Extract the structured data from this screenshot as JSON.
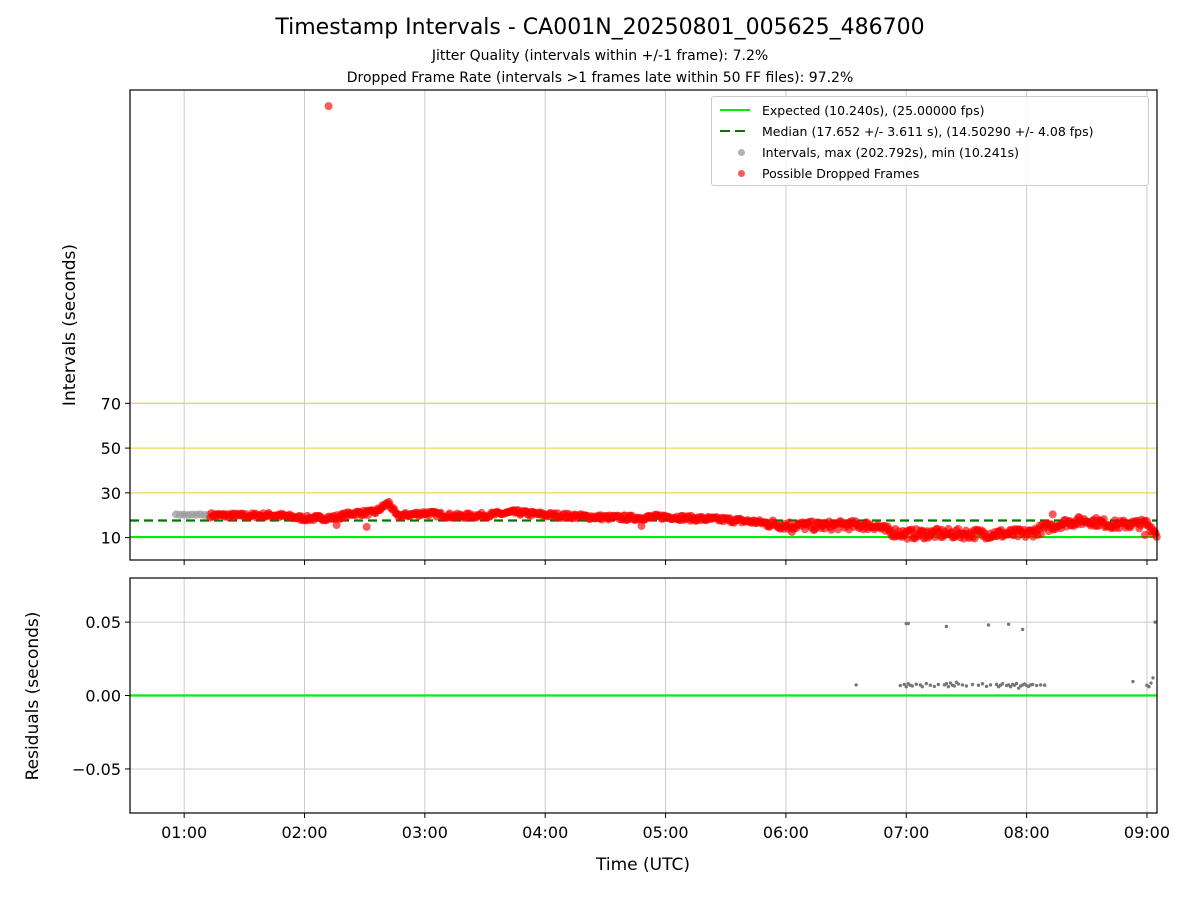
{
  "title": "Timestamp Intervals - CA001N_20250801_005625_486700",
  "subtitles": [
    "Jitter Quality (intervals within +/-1 frame): 7.2%",
    "Dropped Frame Rate (intervals >1 frames late within 50 FF files): 97.2%"
  ],
  "colors": {
    "expected": "#00ee00",
    "median": "#007700",
    "intervals": "#999999",
    "dropped": "#ff0000",
    "threshold": "#f5d060",
    "residual": "#777777",
    "grid": "#cccccc"
  },
  "chart_data": [
    {
      "type": "scatter",
      "xlabel": "Time (UTC)",
      "ylabel": "Intervals (seconds)",
      "x_ticks": [
        "01:00",
        "02:00",
        "03:00",
        "04:00",
        "05:00",
        "06:00",
        "07:00",
        "08:00",
        "09:00"
      ],
      "y_ticks": [
        10,
        30,
        50,
        70
      ],
      "xlim": [
        "00:33",
        "09:05"
      ],
      "ylim": [
        0,
        210
      ],
      "grid": "vertical",
      "legend_position": "top-right",
      "horizontal_lines": [
        {
          "name": "Expected (10.240s), (25.00000 fps)",
          "y": 10.24,
          "style": "solid"
        },
        {
          "name": "Median (17.652 +/- 3.611 s), (14.50290 +/- 4.08 fps)",
          "y": 17.652,
          "style": "dashed"
        },
        {
          "name": "",
          "y": 30,
          "style": "threshold"
        },
        {
          "name": "",
          "y": 50,
          "style": "threshold"
        },
        {
          "name": "",
          "y": 70,
          "style": "threshold"
        }
      ],
      "series": [
        {
          "name": "Intervals, max (202.792s), min (10.241s)",
          "points": [
            [
              "00:56",
              20.4
            ],
            [
              "00:58",
              20.2
            ],
            [
              "01:00",
              20.3
            ],
            [
              "01:02",
              20.1
            ],
            [
              "01:04",
              20.3
            ],
            [
              "01:06",
              20.2
            ],
            [
              "01:08",
              20.4
            ],
            [
              "01:10",
              20.1
            ],
            [
              "01:12",
              20.2
            ]
          ]
        },
        {
          "name": "Possible Dropped Frames",
          "outlier": [
            "02:12",
            202.8
          ],
          "trend": [
            [
              "01:13",
              20.0
            ],
            [
              "01:30",
              19.8
            ],
            [
              "01:45",
              20.1
            ],
            [
              "02:00",
              18.6
            ],
            [
              "02:15",
              18.9
            ],
            [
              "02:25",
              21.0
            ],
            [
              "02:35",
              21.2
            ],
            [
              "02:42",
              25.6
            ],
            [
              "02:46",
              19.6
            ],
            [
              "03:00",
              21.0
            ],
            [
              "03:15",
              19.6
            ],
            [
              "03:30",
              20.0
            ],
            [
              "03:45",
              21.3
            ],
            [
              "04:00",
              20.2
            ],
            [
              "04:15",
              19.6
            ],
            [
              "04:30",
              19.0
            ],
            [
              "04:45",
              18.8
            ],
            [
              "05:00",
              19.4
            ],
            [
              "05:15",
              18.5
            ],
            [
              "05:30",
              18.0
            ],
            [
              "05:45",
              17.0
            ],
            [
              "06:00",
              15.5
            ],
            [
              "06:15",
              15.2
            ],
            [
              "06:30",
              15.6
            ],
            [
              "06:45",
              15.4
            ],
            [
              "06:50",
              13.0
            ],
            [
              "07:00",
              11.6
            ],
            [
              "07:15",
              11.8
            ],
            [
              "07:30",
              11.7
            ],
            [
              "07:45",
              11.8
            ],
            [
              "08:00",
              11.7
            ],
            [
              "08:10",
              14.5
            ],
            [
              "08:20",
              16.8
            ],
            [
              "08:30",
              17.6
            ],
            [
              "08:45",
              15.7
            ],
            [
              "09:00",
              16.3
            ],
            [
              "09:05",
              11.6
            ]
          ]
        }
      ]
    },
    {
      "type": "scatter",
      "xlabel": "Time (UTC)",
      "ylabel": "Residuals (seconds)",
      "y_ticks": [
        "0.05",
        "0.00",
        "−0.05"
      ],
      "y_tick_values": [
        0.05,
        0.0,
        -0.05
      ],
      "ylim": [
        -0.08,
        0.08
      ],
      "grid": "both",
      "zero_line": 0.0,
      "series": [
        {
          "name": "",
          "points": [
            [
              "06:57",
              0.0068
            ],
            [
              "06:59",
              0.0075
            ],
            [
              "07:00",
              0.006
            ],
            [
              "07:01",
              0.008
            ],
            [
              "07:02",
              0.007
            ],
            [
              "07:03",
              0.0065
            ],
            [
              "07:05",
              0.0077
            ],
            [
              "07:07",
              0.0072
            ],
            [
              "07:08",
              0.006
            ],
            [
              "07:10",
              0.0081
            ],
            [
              "07:12",
              0.007
            ],
            [
              "07:14",
              0.0062
            ],
            [
              "07:16",
              0.0075
            ],
            [
              "07:19",
              0.0072
            ],
            [
              "07:20",
              0.008
            ],
            [
              "07:21",
              0.006
            ],
            [
              "07:22",
              0.0085
            ],
            [
              "07:23",
              0.007
            ],
            [
              "07:24",
              0.0065
            ],
            [
              "07:25",
              0.009
            ],
            [
              "07:26",
              0.0078
            ],
            [
              "07:28",
              0.0072
            ],
            [
              "07:30",
              0.0065
            ],
            [
              "07:33",
              0.0075
            ],
            [
              "07:36",
              0.007
            ],
            [
              "07:38",
              0.008
            ],
            [
              "07:40",
              0.0062
            ],
            [
              "07:42",
              0.0072
            ],
            [
              "07:45",
              0.0076
            ],
            [
              "07:46",
              0.006
            ],
            [
              "07:47",
              0.007
            ],
            [
              "07:48",
              0.008
            ],
            [
              "07:50",
              0.0068
            ],
            [
              "07:51",
              0.0072
            ],
            [
              "07:52",
              0.006
            ],
            [
              "07:53",
              0.0075
            ],
            [
              "07:54",
              0.007
            ],
            [
              "07:55",
              0.0082
            ],
            [
              "07:56",
              0.005
            ],
            [
              "07:57",
              0.0065
            ],
            [
              "07:58",
              0.0072
            ],
            [
              "07:59",
              0.0078
            ],
            [
              "08:00",
              0.0068
            ],
            [
              "08:01",
              0.0062
            ],
            [
              "08:02",
              0.0072
            ],
            [
              "08:03",
              0.0075
            ],
            [
              "08:05",
              0.0068
            ],
            [
              "08:07",
              0.0072
            ],
            [
              "08:09",
              0.007
            ],
            [
              "06:35",
              0.0072
            ],
            [
              "07:00",
              0.049
            ],
            [
              "07:01",
              0.049
            ],
            [
              "07:20",
              0.047
            ],
            [
              "07:41",
              0.048
            ],
            [
              "07:51",
              0.0485
            ],
            [
              "07:58",
              0.045
            ],
            [
              "08:53",
              0.0095
            ],
            [
              "09:00",
              0.007
            ],
            [
              "09:01",
              0.006
            ],
            [
              "09:02",
              0.0085
            ],
            [
              "09:03",
              0.012
            ],
            [
              "09:04",
              0.05
            ]
          ]
        }
      ]
    }
  ]
}
